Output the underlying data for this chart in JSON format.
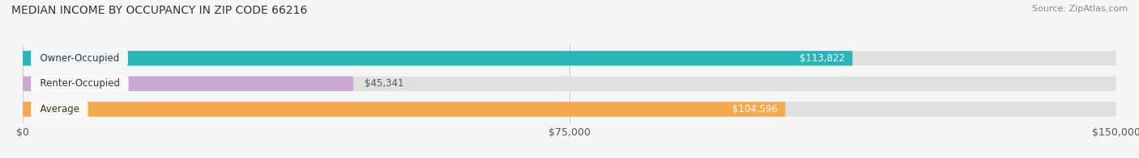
{
  "title": "MEDIAN INCOME BY OCCUPANCY IN ZIP CODE 66216",
  "source": "Source: ZipAtlas.com",
  "categories": [
    "Owner-Occupied",
    "Renter-Occupied",
    "Average"
  ],
  "values": [
    113822,
    45341,
    104596
  ],
  "bar_colors": [
    "#2bb5b8",
    "#c9a8d4",
    "#f5a94e"
  ],
  "value_labels": [
    "$113,822",
    "$45,341",
    "$104,596"
  ],
  "label_inside": [
    true,
    false,
    true
  ],
  "x_ticks": [
    0,
    75000,
    150000
  ],
  "x_tick_labels": [
    "$0",
    "$75,000",
    "$150,000"
  ],
  "xlim": [
    0,
    150000
  ],
  "bar_bg_color": "#e0e0e0",
  "fig_bg_color": "#f5f5f5",
  "title_fontsize": 10,
  "source_fontsize": 8
}
